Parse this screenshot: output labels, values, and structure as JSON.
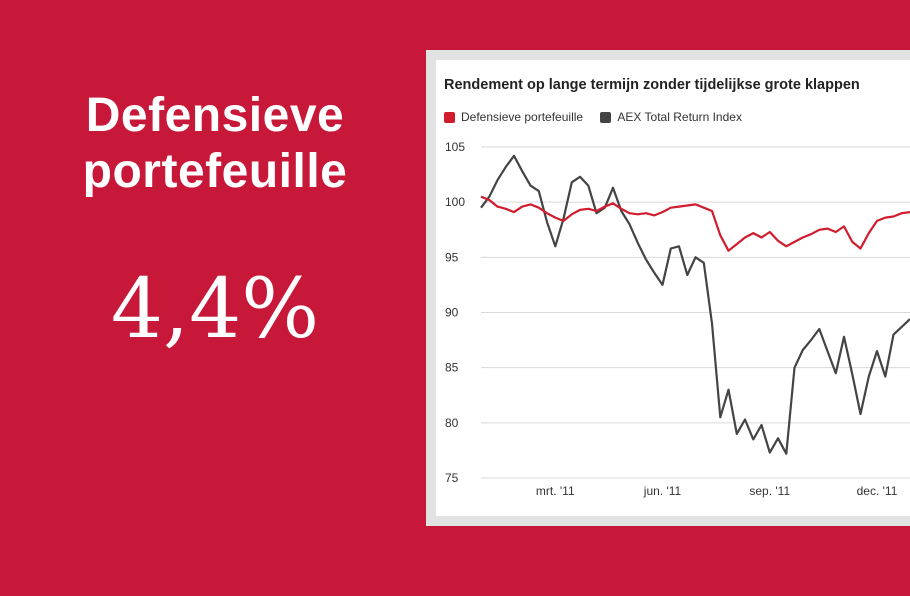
{
  "headline": "Defensieve portefeuille",
  "stat": "4,4%",
  "colors": {
    "background": "#c8183a",
    "defensive": "#d01c2c",
    "aex": "#444444"
  },
  "chart_data": {
    "type": "line",
    "title": "Rendement op lange termijn zonder tijdelijkse grote klappen",
    "xlabel": "",
    "ylabel": "",
    "ylim": [
      75,
      105
    ],
    "yticks": [
      75,
      80,
      85,
      90,
      95,
      100,
      105
    ],
    "xtick_labels": [
      "mrt. '11",
      "jun. '11",
      "sep. '11",
      "dec. '11"
    ],
    "xtick_weeks": [
      9,
      22,
      35,
      48
    ],
    "xlim_weeks": [
      0,
      52
    ],
    "grid": true,
    "legend_position": "top-left",
    "x": [
      0,
      1,
      2,
      3,
      4,
      5,
      6,
      7,
      8,
      9,
      10,
      11,
      12,
      13,
      14,
      15,
      16,
      17,
      18,
      19,
      20,
      21,
      22,
      23,
      24,
      25,
      26,
      27,
      28,
      29,
      30,
      31,
      32,
      33,
      34,
      35,
      36,
      37,
      38,
      39,
      40,
      41,
      42,
      43,
      44,
      45,
      46,
      47,
      48,
      49,
      50,
      51,
      52
    ],
    "series": [
      {
        "name": "Defensieve portefeuille",
        "color": "#d01c2c",
        "values": [
          100.5,
          100.2,
          99.6,
          99.4,
          99.1,
          99.6,
          99.8,
          99.5,
          99.0,
          98.6,
          98.3,
          98.9,
          99.3,
          99.4,
          99.2,
          99.6,
          99.9,
          99.4,
          99.0,
          98.9,
          99.0,
          98.8,
          99.1,
          99.5,
          99.6,
          99.7,
          99.8,
          99.5,
          99.2,
          97.0,
          95.6,
          96.2,
          96.8,
          97.2,
          96.8,
          97.3,
          96.5,
          96.0,
          96.4,
          96.8,
          97.1,
          97.5,
          97.6,
          97.3,
          97.8,
          96.4,
          95.8,
          97.2,
          98.3,
          98.6,
          98.7,
          99.0,
          99.1
        ]
      },
      {
        "name": "AEX Total Return Index",
        "color": "#444444",
        "values": [
          99.5,
          100.5,
          102.0,
          103.2,
          104.2,
          102.8,
          101.5,
          101.0,
          98.2,
          96.0,
          98.5,
          101.8,
          102.3,
          101.5,
          99.0,
          99.5,
          101.3,
          99.2,
          98.0,
          96.3,
          94.8,
          93.6,
          92.5,
          95.8,
          96.0,
          93.4,
          95.0,
          94.5,
          89.0,
          80.5,
          83.0,
          79.0,
          80.3,
          78.5,
          79.8,
          77.3,
          78.6,
          77.2,
          85.0,
          86.6,
          87.5,
          88.5,
          86.5,
          84.5,
          87.8,
          84.4,
          80.8,
          84.2,
          86.5,
          84.2,
          88.0,
          88.7,
          89.4
        ]
      }
    ]
  }
}
